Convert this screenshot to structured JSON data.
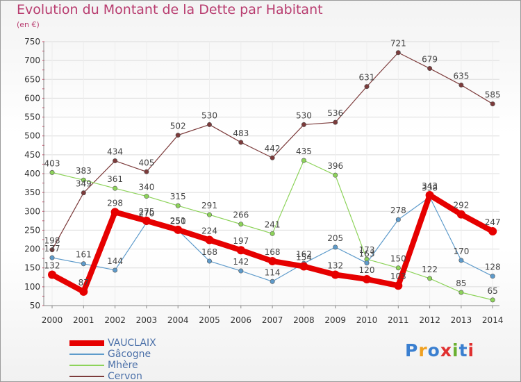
{
  "header": {
    "title": "Evolution du Montant de la Dette par Habitant",
    "subtitle": "(en €)"
  },
  "logo": {
    "text": "Proxiti",
    "colors": [
      "#3a7fd0",
      "#f0a020",
      "#3a7fd0",
      "#e03030",
      "#6ab030",
      "#3a7fd0",
      "#e03030"
    ]
  },
  "chart_data": {
    "type": "line",
    "x": [
      "2000",
      "2001",
      "2002",
      "2003",
      "2004",
      "2005",
      "2006",
      "2007",
      "2008",
      "2009",
      "2010",
      "2011",
      "2012",
      "2013",
      "2014"
    ],
    "ylim": [
      50,
      750
    ],
    "yticks": [
      50,
      100,
      150,
      200,
      250,
      300,
      350,
      400,
      450,
      500,
      550,
      600,
      650,
      700,
      750
    ],
    "grid": true,
    "series": [
      {
        "name": "VAUCLAIX",
        "color": "#e60000",
        "width": 8,
        "values": [
          132,
          87,
          298,
          275,
          251,
          224,
          197,
          168,
          154,
          132,
          120,
          103,
          343,
          292,
          247
        ],
        "labels": [
          "132",
          "87",
          "298",
          "275",
          "251",
          "224",
          "197",
          "168",
          "154",
          "132",
          "120",
          "103",
          "343",
          "292",
          "247"
        ]
      },
      {
        "name": "Gâcogne",
        "color": "#5e9bcb",
        "width": 1.2,
        "values": [
          177,
          161,
          144,
          270,
          250,
          168,
          142,
          114,
          162,
          205,
          163,
          278,
          338,
          170,
          128
        ],
        "labels": [
          "177",
          "161",
          "144",
          "270",
          "250",
          "168",
          "142",
          "114",
          "162",
          "205",
          "163",
          "278",
          "338",
          "170",
          "128"
        ]
      },
      {
        "name": "Mhère",
        "color": "#8dd35a",
        "width": 1.2,
        "values": [
          403,
          383,
          361,
          340,
          315,
          291,
          266,
          241,
          435,
          396,
          173,
          150,
          122,
          85,
          65
        ],
        "labels": [
          "403",
          "383",
          "361",
          "340",
          "315",
          "291",
          "266",
          "241",
          "435",
          "396",
          "173",
          "150",
          "122",
          "85",
          "65"
        ]
      },
      {
        "name": "Cervon",
        "color": "#7c3b3b",
        "width": 1.2,
        "values": [
          198,
          349,
          434,
          405,
          502,
          530,
          483,
          442,
          530,
          536,
          631,
          721,
          679,
          635,
          585
        ],
        "labels": [
          "198",
          "349",
          "434",
          "405",
          "502",
          "530",
          "483",
          "442",
          "530",
          "536",
          "631",
          "721",
          "679",
          "635",
          "585"
        ]
      }
    ]
  }
}
